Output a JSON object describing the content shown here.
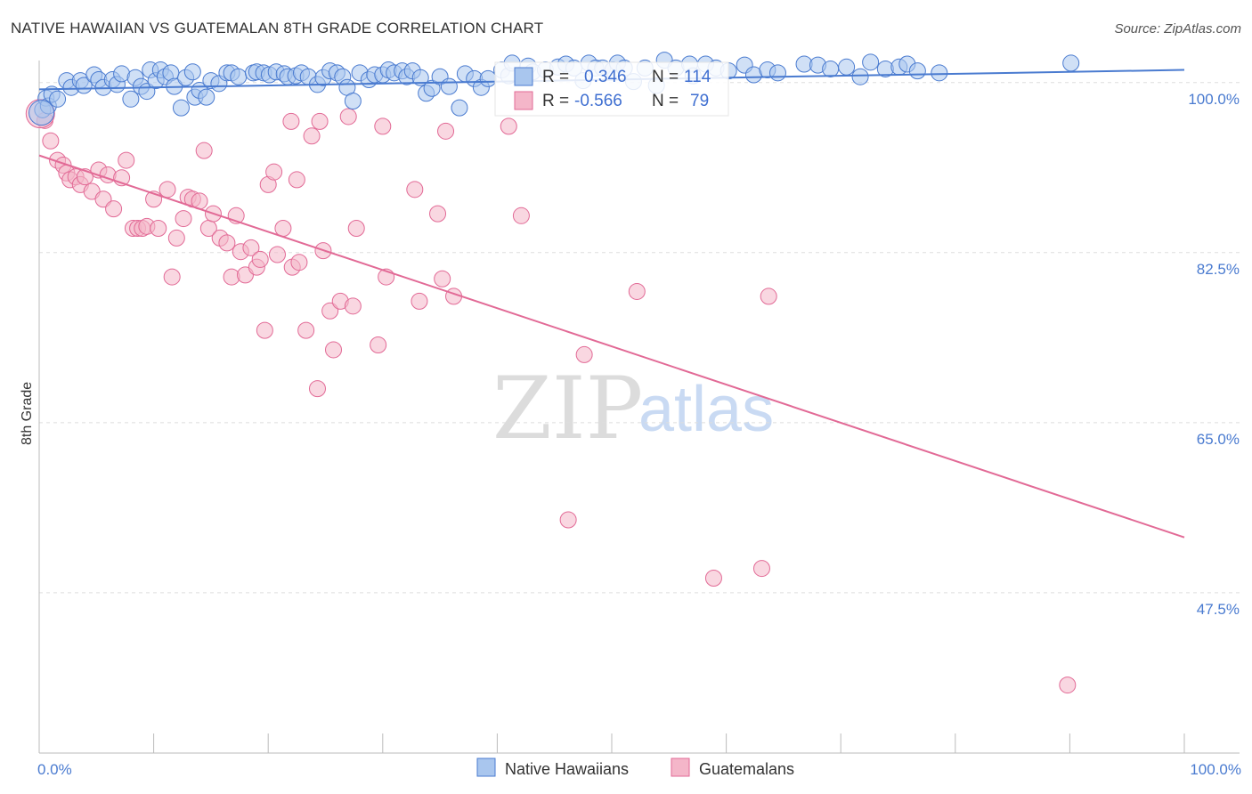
{
  "title": "NATIVE HAWAIIAN VS GUATEMALAN 8TH GRADE CORRELATION CHART",
  "source": "Source: ZipAtlas.com",
  "watermark": {
    "zip": "ZIP",
    "atlas": "atlas"
  },
  "colors": {
    "blue": "#4a7bd0",
    "blue_fill": "#a9c6ee",
    "pink": "#e26a96",
    "pink_fill": "#f4b6c9",
    "grid": "#dddddd"
  },
  "stats_box": [
    {
      "r_label": "R =",
      "r_value": "0.346",
      "n_label": "N =",
      "n_value": "114"
    },
    {
      "r_label": "R =",
      "r_value": "-0.566",
      "n_label": "N =",
      "n_value": "79"
    }
  ],
  "chart_data": {
    "type": "scatter",
    "title": "NATIVE HAWAIIAN VS GUATEMALAN 8TH GRADE CORRELATION CHART",
    "xlabel": "",
    "ylabel": "8th Grade",
    "xlim": [
      0,
      100
    ],
    "ylim": [
      31,
      103
    ],
    "y_ticks": [
      {
        "value": 100,
        "label": "100.0%"
      },
      {
        "value": 82.5,
        "label": "82.5%"
      },
      {
        "value": 65,
        "label": "65.0%"
      },
      {
        "value": 47.5,
        "label": "47.5%"
      }
    ],
    "x_tick_labels": {
      "left": "0.0%",
      "right": "100.0%"
    },
    "x_minor_ticks": [
      0,
      10,
      20,
      30,
      40,
      50,
      60,
      70,
      80,
      90,
      100
    ],
    "legend": [
      {
        "name": "Native Hawaiians",
        "color": "blue"
      },
      {
        "name": "Guatemalans",
        "color": "pink"
      }
    ],
    "series": [
      {
        "name": "Native Hawaiians",
        "color": "blue",
        "trend": {
          "x": [
            0,
            100
          ],
          "y": [
            99.3,
            101.3
          ]
        },
        "points": [
          [
            0.3,
            97.2
          ],
          [
            0.6,
            98.4
          ],
          [
            0.8,
            97.6
          ],
          [
            1.1,
            98.8
          ],
          [
            1.6,
            98.3
          ],
          [
            2.4,
            100.2
          ],
          [
            2.8,
            99.5
          ],
          [
            3.6,
            100.2
          ],
          [
            3.9,
            99.7
          ],
          [
            4.8,
            100.8
          ],
          [
            5.2,
            100.3
          ],
          [
            5.6,
            99.5
          ],
          [
            6.4,
            100.3
          ],
          [
            6.8,
            99.8
          ],
          [
            7.2,
            100.9
          ],
          [
            8.0,
            98.3
          ],
          [
            8.4,
            100.5
          ],
          [
            8.9,
            99.6
          ],
          [
            9.4,
            99.1
          ],
          [
            9.7,
            101.3
          ],
          [
            10.2,
            100.2
          ],
          [
            10.6,
            101.3
          ],
          [
            11.0,
            100.6
          ],
          [
            11.5,
            101.0
          ],
          [
            11.8,
            99.6
          ],
          [
            12.4,
            97.4
          ],
          [
            12.8,
            100.5
          ],
          [
            13.4,
            101.1
          ],
          [
            13.6,
            98.5
          ],
          [
            14.0,
            99.2
          ],
          [
            14.6,
            98.5
          ],
          [
            15.0,
            100.2
          ],
          [
            15.7,
            99.9
          ],
          [
            16.4,
            101.0
          ],
          [
            16.8,
            101.0
          ],
          [
            17.4,
            100.6
          ],
          [
            18.7,
            101.0
          ],
          [
            19.0,
            101.1
          ],
          [
            19.6,
            101.0
          ],
          [
            20.1,
            100.8
          ],
          [
            20.7,
            101.1
          ],
          [
            21.4,
            100.9
          ],
          [
            21.7,
            100.6
          ],
          [
            22.4,
            100.7
          ],
          [
            22.9,
            101.0
          ],
          [
            23.5,
            100.6
          ],
          [
            24.3,
            99.8
          ],
          [
            24.8,
            100.5
          ],
          [
            25.4,
            101.2
          ],
          [
            26.0,
            101.0
          ],
          [
            26.5,
            100.6
          ],
          [
            26.9,
            99.5
          ],
          [
            27.4,
            98.1
          ],
          [
            28.0,
            101.0
          ],
          [
            28.8,
            100.3
          ],
          [
            29.3,
            100.8
          ],
          [
            30.0,
            100.8
          ],
          [
            30.5,
            101.3
          ],
          [
            31.0,
            101.0
          ],
          [
            31.7,
            101.2
          ],
          [
            32.1,
            100.6
          ],
          [
            32.6,
            101.2
          ],
          [
            33.3,
            100.5
          ],
          [
            33.8,
            98.9
          ],
          [
            34.3,
            99.4
          ],
          [
            35.0,
            100.6
          ],
          [
            35.8,
            99.6
          ],
          [
            36.7,
            97.4
          ],
          [
            37.2,
            100.9
          ],
          [
            38.0,
            100.4
          ],
          [
            38.6,
            99.5
          ],
          [
            39.2,
            100.4
          ],
          [
            40.4,
            101.3
          ],
          [
            41.0,
            100.7
          ],
          [
            41.3,
            102.0
          ],
          [
            42.7,
            101.7
          ],
          [
            43.1,
            101.1
          ],
          [
            44.2,
            101.3
          ],
          [
            45.3,
            101.6
          ],
          [
            46.0,
            101.9
          ],
          [
            46.7,
            101.5
          ],
          [
            47.5,
            100.2
          ],
          [
            48.0,
            102.0
          ],
          [
            48.6,
            101.5
          ],
          [
            49.2,
            101.5
          ],
          [
            50.1,
            101.3
          ],
          [
            50.5,
            102.0
          ],
          [
            51.1,
            101.5
          ],
          [
            51.9,
            100.1
          ],
          [
            52.9,
            101.5
          ],
          [
            53.9,
            99.7
          ],
          [
            54.6,
            102.3
          ],
          [
            55.6,
            101.5
          ],
          [
            56.8,
            101.9
          ],
          [
            57.1,
            100.7
          ],
          [
            58.2,
            101.9
          ],
          [
            59.1,
            101.5
          ],
          [
            60.2,
            101.2
          ],
          [
            61.6,
            101.8
          ],
          [
            62.4,
            100.8
          ],
          [
            63.6,
            101.3
          ],
          [
            64.5,
            101.0
          ],
          [
            66.8,
            101.9
          ],
          [
            68.0,
            101.8
          ],
          [
            69.1,
            101.4
          ],
          [
            70.5,
            101.6
          ],
          [
            71.7,
            100.6
          ],
          [
            72.6,
            102.1
          ],
          [
            73.9,
            101.4
          ],
          [
            75.1,
            101.6
          ],
          [
            75.8,
            101.9
          ],
          [
            76.7,
            101.2
          ],
          [
            78.6,
            101.0
          ],
          [
            90.1,
            102.0
          ]
        ]
      },
      {
        "name": "Guatemalans",
        "color": "pink",
        "trend": {
          "x": [
            0,
            100
          ],
          "y": [
            92.5,
            53.2
          ]
        },
        "points": [
          [
            0.5,
            96.1
          ],
          [
            1.0,
            94.0
          ],
          [
            1.6,
            92.0
          ],
          [
            2.1,
            91.5
          ],
          [
            2.4,
            90.7
          ],
          [
            2.7,
            90.0
          ],
          [
            3.2,
            90.3
          ],
          [
            3.6,
            89.5
          ],
          [
            4.0,
            90.3
          ],
          [
            4.6,
            88.8
          ],
          [
            5.2,
            91.0
          ],
          [
            5.6,
            88.0
          ],
          [
            6.0,
            90.5
          ],
          [
            6.5,
            87.0
          ],
          [
            7.2,
            90.2
          ],
          [
            7.6,
            92.0
          ],
          [
            8.2,
            85.0
          ],
          [
            8.6,
            85.0
          ],
          [
            9.0,
            85.0
          ],
          [
            9.4,
            85.2
          ],
          [
            10.0,
            88.0
          ],
          [
            10.4,
            85.0
          ],
          [
            11.2,
            89.0
          ],
          [
            11.6,
            80.0
          ],
          [
            12.0,
            84.0
          ],
          [
            12.6,
            86.0
          ],
          [
            13.0,
            88.2
          ],
          [
            13.4,
            88.0
          ],
          [
            14.0,
            87.8
          ],
          [
            14.4,
            93.0
          ],
          [
            14.8,
            85.0
          ],
          [
            15.2,
            86.5
          ],
          [
            15.8,
            84.0
          ],
          [
            16.4,
            83.5
          ],
          [
            16.8,
            80.0
          ],
          [
            17.2,
            86.3
          ],
          [
            17.6,
            82.6
          ],
          [
            18.0,
            80.2
          ],
          [
            18.5,
            83.0
          ],
          [
            19.0,
            81.0
          ],
          [
            19.3,
            81.8
          ],
          [
            19.7,
            74.5
          ],
          [
            20.0,
            89.5
          ],
          [
            20.5,
            90.8
          ],
          [
            20.8,
            82.3
          ],
          [
            21.3,
            85.0
          ],
          [
            22.1,
            81.0
          ],
          [
            22.5,
            90.0
          ],
          [
            22.7,
            81.5
          ],
          [
            23.3,
            74.5
          ],
          [
            23.8,
            94.5
          ],
          [
            24.3,
            68.5
          ],
          [
            24.8,
            82.7
          ],
          [
            25.4,
            76.5
          ],
          [
            25.7,
            72.5
          ],
          [
            26.3,
            77.5
          ],
          [
            27.4,
            77.0
          ],
          [
            27.7,
            85.0
          ],
          [
            29.6,
            73.0
          ],
          [
            30.3,
            80.0
          ],
          [
            32.8,
            89.0
          ],
          [
            33.2,
            77.5
          ],
          [
            34.8,
            86.5
          ],
          [
            35.2,
            79.8
          ],
          [
            36.2,
            78.0
          ],
          [
            46.2,
            55.0
          ],
          [
            52.2,
            78.5
          ],
          [
            58.9,
            49.0
          ],
          [
            63.1,
            50.0
          ],
          [
            63.7,
            78.0
          ],
          [
            47.6,
            72.0
          ],
          [
            42.1,
            86.3
          ],
          [
            89.8,
            38.0
          ],
          [
            22.0,
            96.0
          ],
          [
            24.5,
            96.0
          ],
          [
            27.0,
            96.5
          ],
          [
            30.0,
            95.5
          ],
          [
            35.5,
            95.0
          ],
          [
            41.0,
            95.5
          ]
        ]
      }
    ]
  }
}
